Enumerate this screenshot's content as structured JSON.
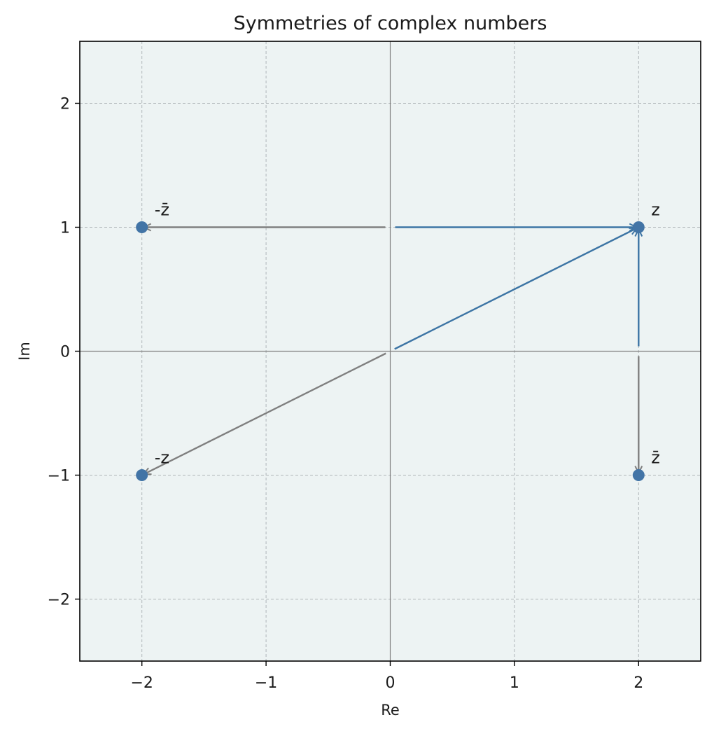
{
  "chart_data": {
    "type": "scatter",
    "title": "Symmetries of complex numbers",
    "xlabel": "Re",
    "ylabel": "Im",
    "xlim": [
      -2.5,
      2.5
    ],
    "ylim": [
      -2.5,
      2.5
    ],
    "xticks": [
      -2,
      -1,
      0,
      1,
      2
    ],
    "yticks": [
      -2,
      -1,
      0,
      1,
      2
    ],
    "xtick_labels": [
      "−2",
      "−1",
      "0",
      "1",
      "2"
    ],
    "ytick_labels": [
      "−2",
      "−1",
      "0",
      "1",
      "2"
    ],
    "grid": true,
    "background_color": "#edf3f3",
    "points": [
      {
        "label": "z",
        "x": 2,
        "y": 1
      },
      {
        "label": "z̄",
        "x": 2,
        "y": -1
      },
      {
        "label": "-z",
        "x": -2,
        "y": -1
      },
      {
        "label": "-z̄",
        "x": -2,
        "y": 1
      }
    ],
    "arrows": [
      {
        "from": [
          0,
          0
        ],
        "to": [
          2,
          1
        ],
        "color": "#3c74a4"
      },
      {
        "from": [
          0,
          1
        ],
        "to": [
          2,
          1
        ],
        "color": "#3c74a4"
      },
      {
        "from": [
          2,
          0
        ],
        "to": [
          2,
          1
        ],
        "color": "#3c74a4"
      },
      {
        "from": [
          2,
          0
        ],
        "to": [
          2,
          -1
        ],
        "color": "#7f7f7f"
      },
      {
        "from": [
          0,
          0
        ],
        "to": [
          -2,
          -1
        ],
        "color": "#7f7f7f"
      },
      {
        "from": [
          0,
          1
        ],
        "to": [
          -2,
          1
        ],
        "color": "#7f7f7f"
      }
    ],
    "colors": {
      "point": "#4274a6",
      "blue_arrow": "#3c74a4",
      "gray_arrow": "#7f7f7f",
      "axis_line": "#808080",
      "grid": "#b0b6b8"
    }
  }
}
